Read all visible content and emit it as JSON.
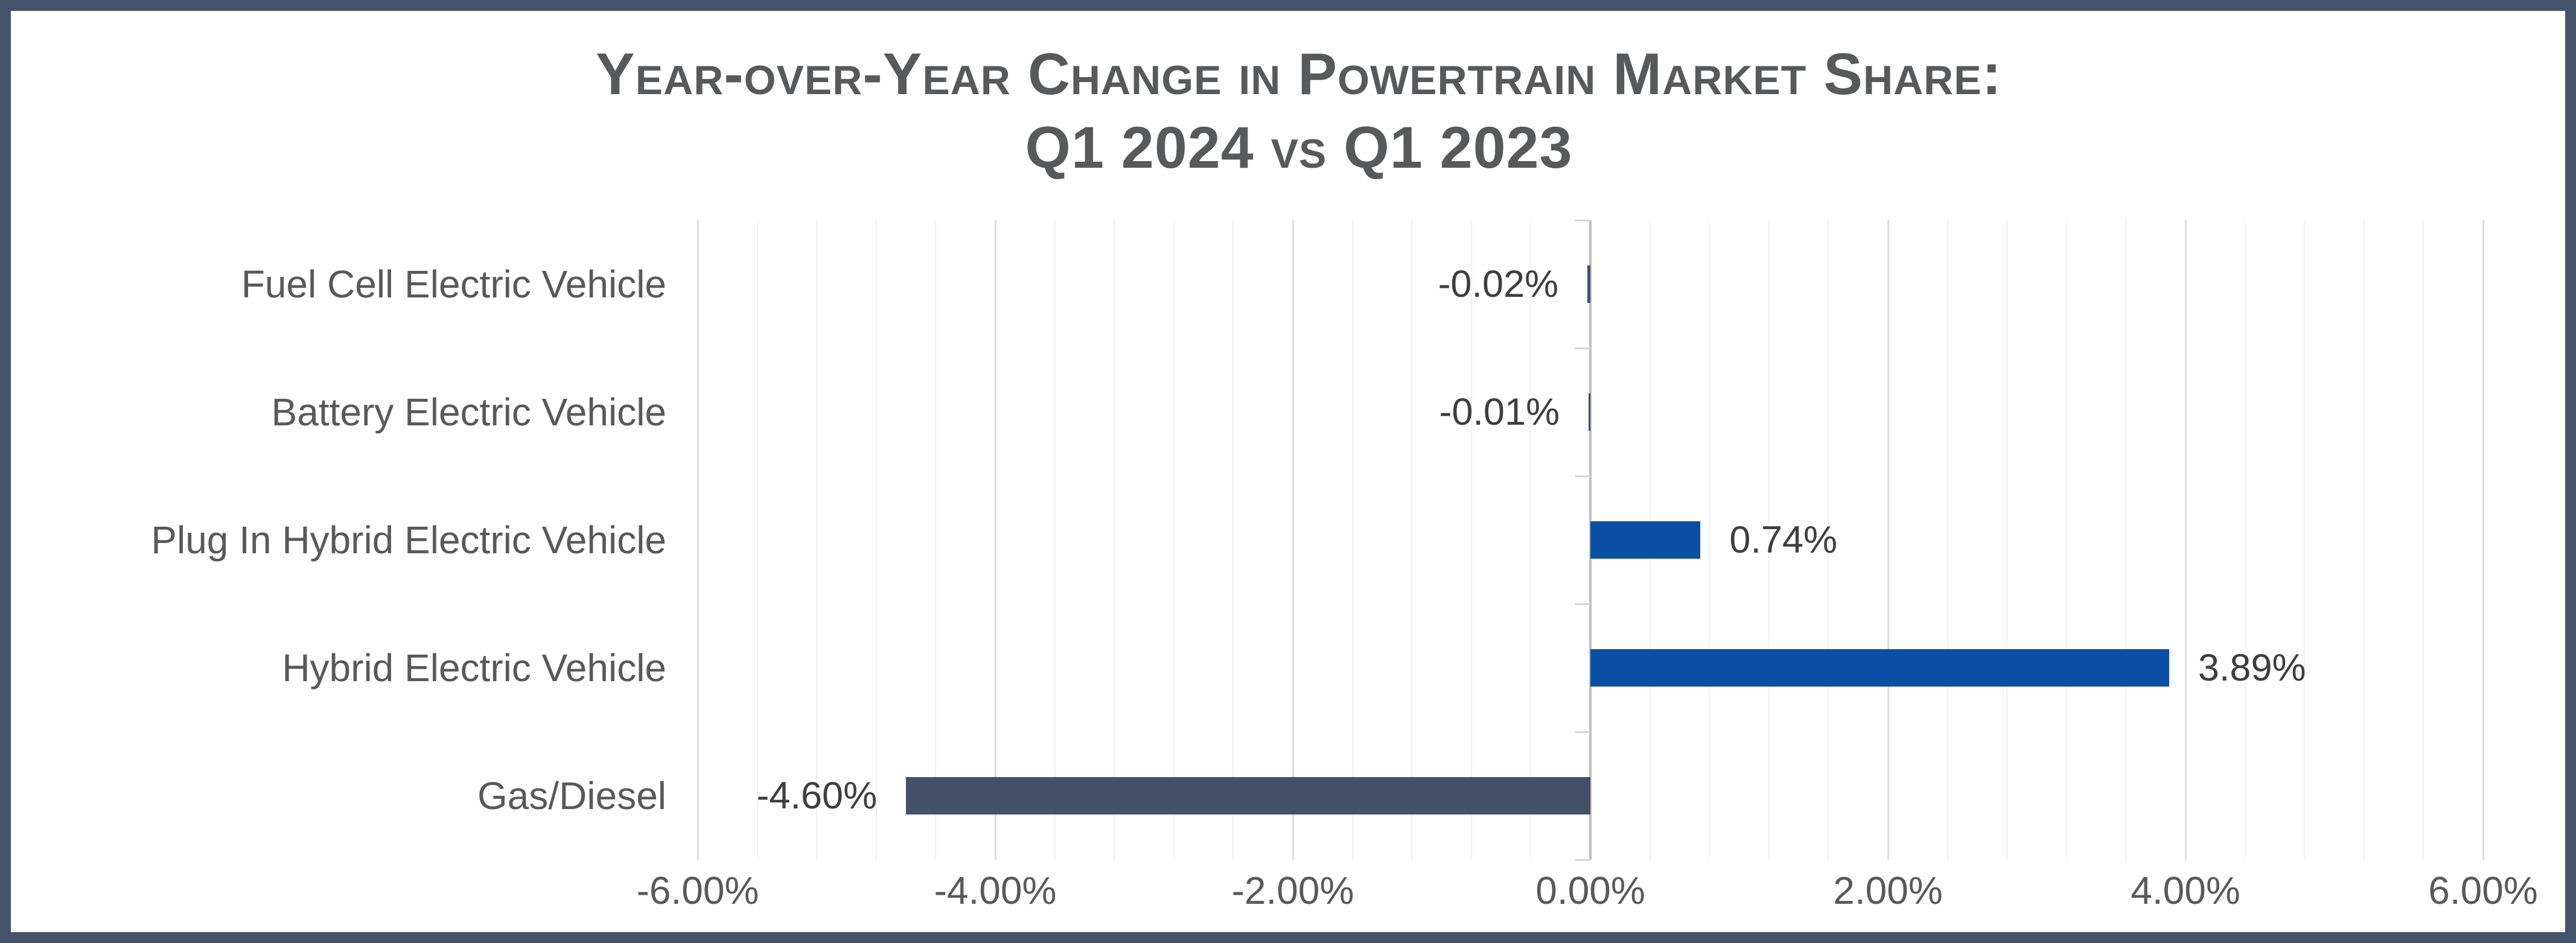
{
  "frame": {
    "border_color": "#44536A",
    "background_color": "#FFFFFF"
  },
  "title": {
    "line1": "Year-over-Year Change in Powertrain Market Share:",
    "line2": "Q1 2024 vs Q1 2023",
    "color": "#58595B"
  },
  "chart_data": {
    "type": "bar",
    "orientation": "horizontal",
    "title": "Year-over-Year Change in Powertrain Market Share: Q1 2024 vs Q1 2023",
    "categories": [
      "Fuel Cell Electric Vehicle",
      "Battery Electric Vehicle",
      "Plug In Hybrid Electric Vehicle",
      "Hybrid Electric Vehicle",
      "Gas/Diesel"
    ],
    "values": [
      -0.02,
      -0.01,
      0.74,
      3.89,
      -4.6
    ],
    "data_labels": [
      "-0.02%",
      "-0.01%",
      "0.74%",
      "3.89%",
      "-4.60%"
    ],
    "xlabel": "",
    "ylabel": "",
    "xlim": [
      -6,
      6
    ],
    "x_tick_labels": [
      "-6.00%",
      "-4.00%",
      "-2.00%",
      "0.00%",
      "2.00%",
      "4.00%",
      "6.00%"
    ],
    "x_major_unit": 2,
    "x_minor_unit": 0.4,
    "grid": "vertical-minor-and-major",
    "legend": "none",
    "colors": {
      "positive_bar": "#0B4EA6",
      "negative_bar": "#44506A",
      "gridline_minor": "#F1F1F1",
      "gridline_major": "#DCDCDC",
      "zero_axis": "#BFBFBF",
      "category_tick": "#D6D6D6",
      "axis_text": "#595959",
      "data_label_text": "#3E3E3E",
      "title_text": "#58595B"
    }
  }
}
